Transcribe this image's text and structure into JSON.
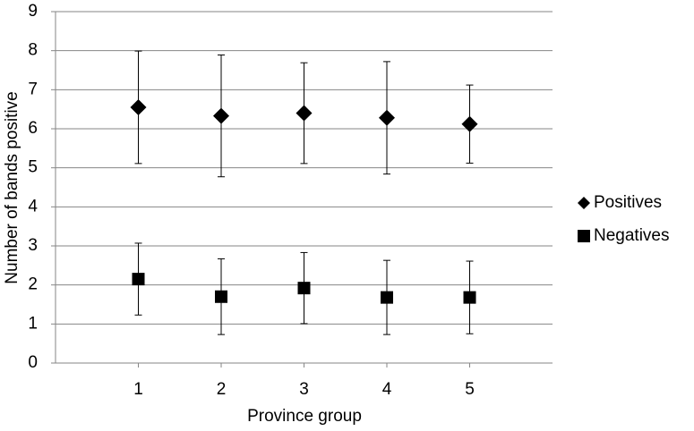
{
  "chart_data": {
    "type": "scatter",
    "x_label": "Province group",
    "y_label": "Number of bands positive",
    "x": [
      1,
      2,
      3,
      4,
      5
    ],
    "xlim": [
      0,
      6
    ],
    "xticks": [
      1,
      2,
      3,
      4,
      5
    ],
    "ylim": [
      0,
      9
    ],
    "yticks": [
      0,
      1,
      2,
      3,
      4,
      5,
      6,
      7,
      8,
      9
    ],
    "grid": true,
    "legend": "right",
    "series": [
      {
        "name": "Positives",
        "color": "#000000",
        "marker": "diamond",
        "values": [
          6.55,
          6.33,
          6.4,
          6.28,
          6.12
        ],
        "errors": [
          1.44,
          1.56,
          1.29,
          1.44,
          1.0
        ]
      },
      {
        "name": "Negatives",
        "color": "#000000",
        "marker": "square",
        "values": [
          2.15,
          1.7,
          1.92,
          1.68,
          1.68
        ],
        "errors": [
          0.92,
          0.97,
          0.91,
          0.95,
          0.93
        ]
      }
    ]
  }
}
